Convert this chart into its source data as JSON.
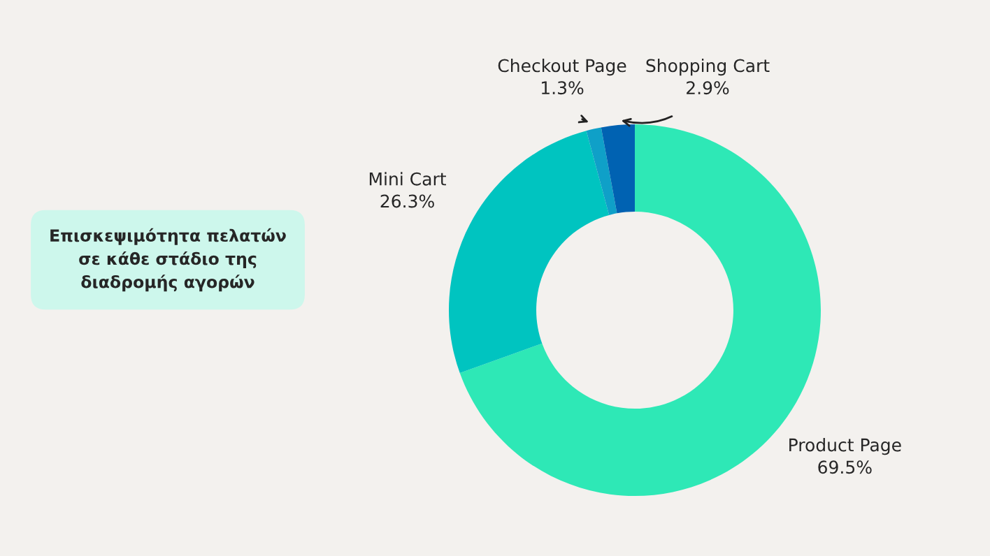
{
  "chart_data": {
    "type": "donut",
    "title": "Επισκεψιμότητα πελατών\nσε κάθε στάδιο της\nδιαδρομής αγορών",
    "categories": [
      "Product Page",
      "Mini Cart",
      "Checkout Page",
      "Shopping Cart"
    ],
    "values": [
      69.5,
      26.3,
      1.3,
      2.9
    ],
    "colors": [
      "#2ee8b6",
      "#00c4c0",
      "#0fa0c8",
      "#0062b2"
    ],
    "value_labels": [
      "69.5%",
      "26.3%",
      "1.3%",
      "2.9%"
    ]
  }
}
